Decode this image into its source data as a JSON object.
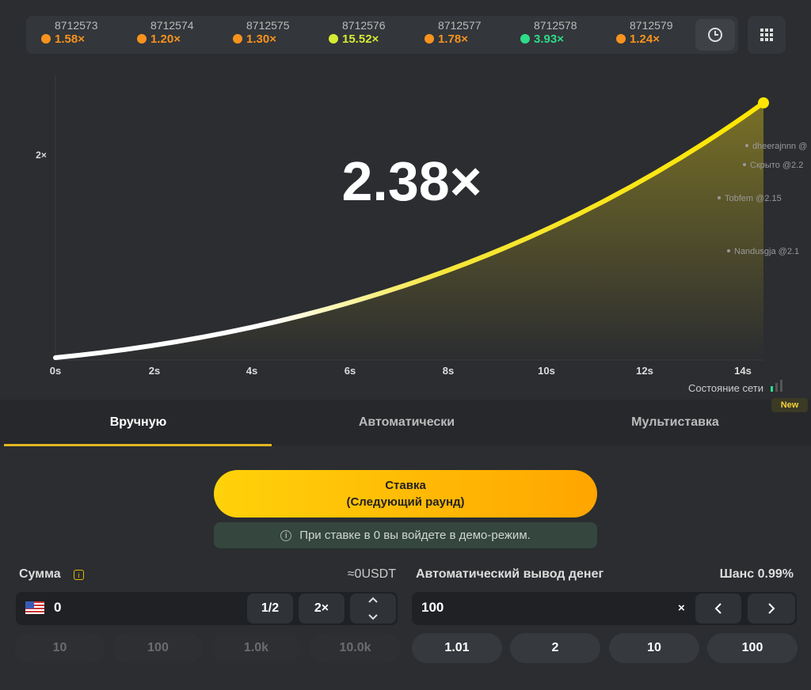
{
  "history": [
    {
      "round": "8712573",
      "multiplier": "1.58×",
      "color": "#f7931e"
    },
    {
      "round": "8712574",
      "multiplier": "1.20×",
      "color": "#f7931e"
    },
    {
      "round": "8712575",
      "multiplier": "1.30×",
      "color": "#f7931e"
    },
    {
      "round": "8712576",
      "multiplier": "15.52×",
      "color": "#d6ea34"
    },
    {
      "round": "8712577",
      "multiplier": "1.78×",
      "color": "#f7931e"
    },
    {
      "round": "8712578",
      "multiplier": "3.93×",
      "color": "#2fdc8a"
    },
    {
      "round": "8712579",
      "multiplier": "1.24×",
      "color": "#f7931e"
    }
  ],
  "graph": {
    "y_label": "2×",
    "multiplier": "2.38×",
    "x_labels": [
      "0s",
      "2s",
      "4s",
      "6s",
      "8s",
      "10s",
      "12s",
      "14s"
    ],
    "players": [
      "dheerajnnn @",
      "Скрыто @2.2",
      "Tobfem @2.15",
      "Nandusgja @2.1"
    ],
    "network": "Состояние сети",
    "badge": "New"
  },
  "tabs": [
    "Вручную",
    "Автоматически",
    "Мультиставка"
  ],
  "bet_button": {
    "title": "Ставка",
    "subtitle": "(Следующий раунд)"
  },
  "info": "При ставке в 0 вы войдете в демо-режим.",
  "amount": {
    "label": "Сумма",
    "usdt": "≈0USDT",
    "value": "0",
    "half": "1/2",
    "double": "2×",
    "presets": [
      "10",
      "100",
      "1.0k",
      "10.0k"
    ]
  },
  "auto_cashout": {
    "label": "Автоматический вывод денег",
    "chance": "Шанс 0.99%",
    "value": "100",
    "unit": "×",
    "presets": [
      "1.01",
      "2",
      "10",
      "100"
    ]
  }
}
